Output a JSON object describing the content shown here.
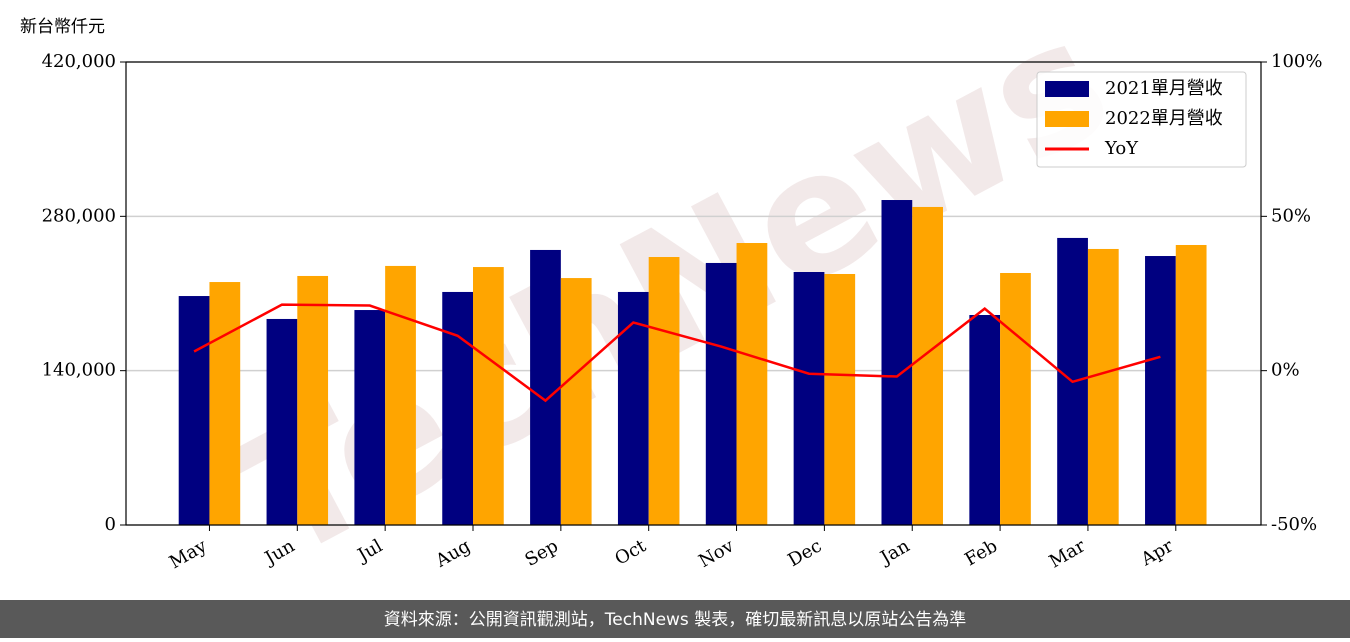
{
  "chart_data": {
    "type": "bar_line",
    "y_axis_label": "新台幣仟元",
    "watermark": "TechNews",
    "footer": "資料來源：公開資訊觀測站，TechNews 製表，確切最新訊息以原站公告為準",
    "categories": [
      "May",
      "Jun",
      "Jul",
      "Aug",
      "Sep",
      "Oct",
      "Nov",
      "Dec",
      "Jan",
      "Feb",
      "Mar",
      "Apr"
    ],
    "series": [
      {
        "name": "2021單月營收",
        "color": "#000080",
        "kind": "bar",
        "values": [
          207700,
          186900,
          195000,
          211400,
          249500,
          211400,
          237700,
          229500,
          294800,
          190500,
          260400,
          244000
        ]
      },
      {
        "name": "2022單月營收",
        "color": "#ffa500",
        "kind": "bar",
        "values": [
          220400,
          225900,
          235000,
          234000,
          224000,
          243100,
          255800,
          227700,
          288500,
          228600,
          250400,
          254000
        ]
      },
      {
        "name": "YoY",
        "color": "#ff0000",
        "kind": "line",
        "axis": "y2",
        "values": [
          6.2,
          21.4,
          21.1,
          11.3,
          -9.7,
          15.6,
          7.8,
          -1.0,
          -1.9,
          20.1,
          -3.6,
          4.5
        ]
      }
    ],
    "ylim": [
      0,
      420000
    ],
    "yticks": [
      0,
      {
        "value": 140000,
        "label": "140,000"
      },
      {
        "value": 280000,
        "label": "280,000"
      },
      {
        "value": 420000,
        "label": "420,000"
      }
    ],
    "y2lim": [
      -50,
      100
    ],
    "y2ticks": [
      {
        "value": -50,
        "label": "-50%"
      },
      {
        "value": 0,
        "label": "0%"
      },
      {
        "value": 50,
        "label": "50%"
      },
      {
        "value": 100,
        "label": "100%"
      }
    ],
    "grid": true,
    "legend": "upper right"
  }
}
